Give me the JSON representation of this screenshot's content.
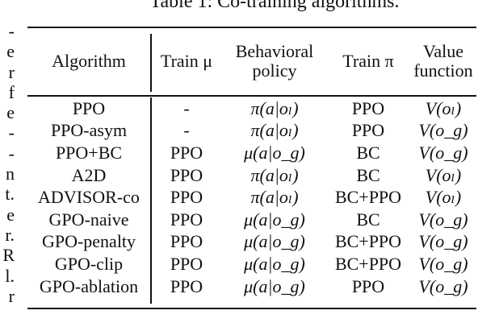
{
  "caption": "Table 1: Co-training algorithms.",
  "left_margin_fragments": [
    "-",
    "e",
    "r",
    "f",
    "e",
    "-",
    "-",
    "n",
    "t.",
    "e",
    "r.",
    "R",
    "l.",
    "r"
  ],
  "table": {
    "headers": {
      "algorithm": "Algorithm",
      "train_mu": "Train μ",
      "behavioral_policy": "Behavioral policy",
      "train_pi": "Train π",
      "value_function": "Value function"
    },
    "rows": [
      {
        "algorithm": "PPO",
        "train_mu": "-",
        "behavioral_policy": "π(a|oₗ)",
        "train_pi": "PPO",
        "value_function": "V(oₗ)"
      },
      {
        "algorithm": "PPO-asym",
        "train_mu": "-",
        "behavioral_policy": "π(a|oₗ)",
        "train_pi": "PPO",
        "value_function": "V(o_g)"
      },
      {
        "algorithm": "PPO+BC",
        "train_mu": "PPO",
        "behavioral_policy": "μ(a|o_g)",
        "train_pi": "BC",
        "value_function": "V(o_g)"
      },
      {
        "algorithm": "A2D",
        "train_mu": "PPO",
        "behavioral_policy": "π(a|oₗ)",
        "train_pi": "BC",
        "value_function": "V(oₗ)"
      },
      {
        "algorithm": "ADVISOR-co",
        "train_mu": "PPO",
        "behavioral_policy": "π(a|oₗ)",
        "train_pi": "BC+PPO",
        "value_function": "V(oₗ)"
      },
      {
        "algorithm": "GPO-naive",
        "train_mu": "PPO",
        "behavioral_policy": "μ(a|o_g)",
        "train_pi": "BC",
        "value_function": "V(o_g)"
      },
      {
        "algorithm": "GPO-penalty",
        "train_mu": "PPO",
        "behavioral_policy": "μ(a|o_g)",
        "train_pi": "BC+PPO",
        "value_function": "V(o_g)"
      },
      {
        "algorithm": "GPO-clip",
        "train_mu": "PPO",
        "behavioral_policy": "μ(a|o_g)",
        "train_pi": "BC+PPO",
        "value_function": "V(o_g)"
      },
      {
        "algorithm": "GPO-ablation",
        "train_mu": "PPO",
        "behavioral_policy": "μ(a|o_g)",
        "train_pi": "PPO",
        "value_function": "V(o_g)"
      }
    ]
  }
}
